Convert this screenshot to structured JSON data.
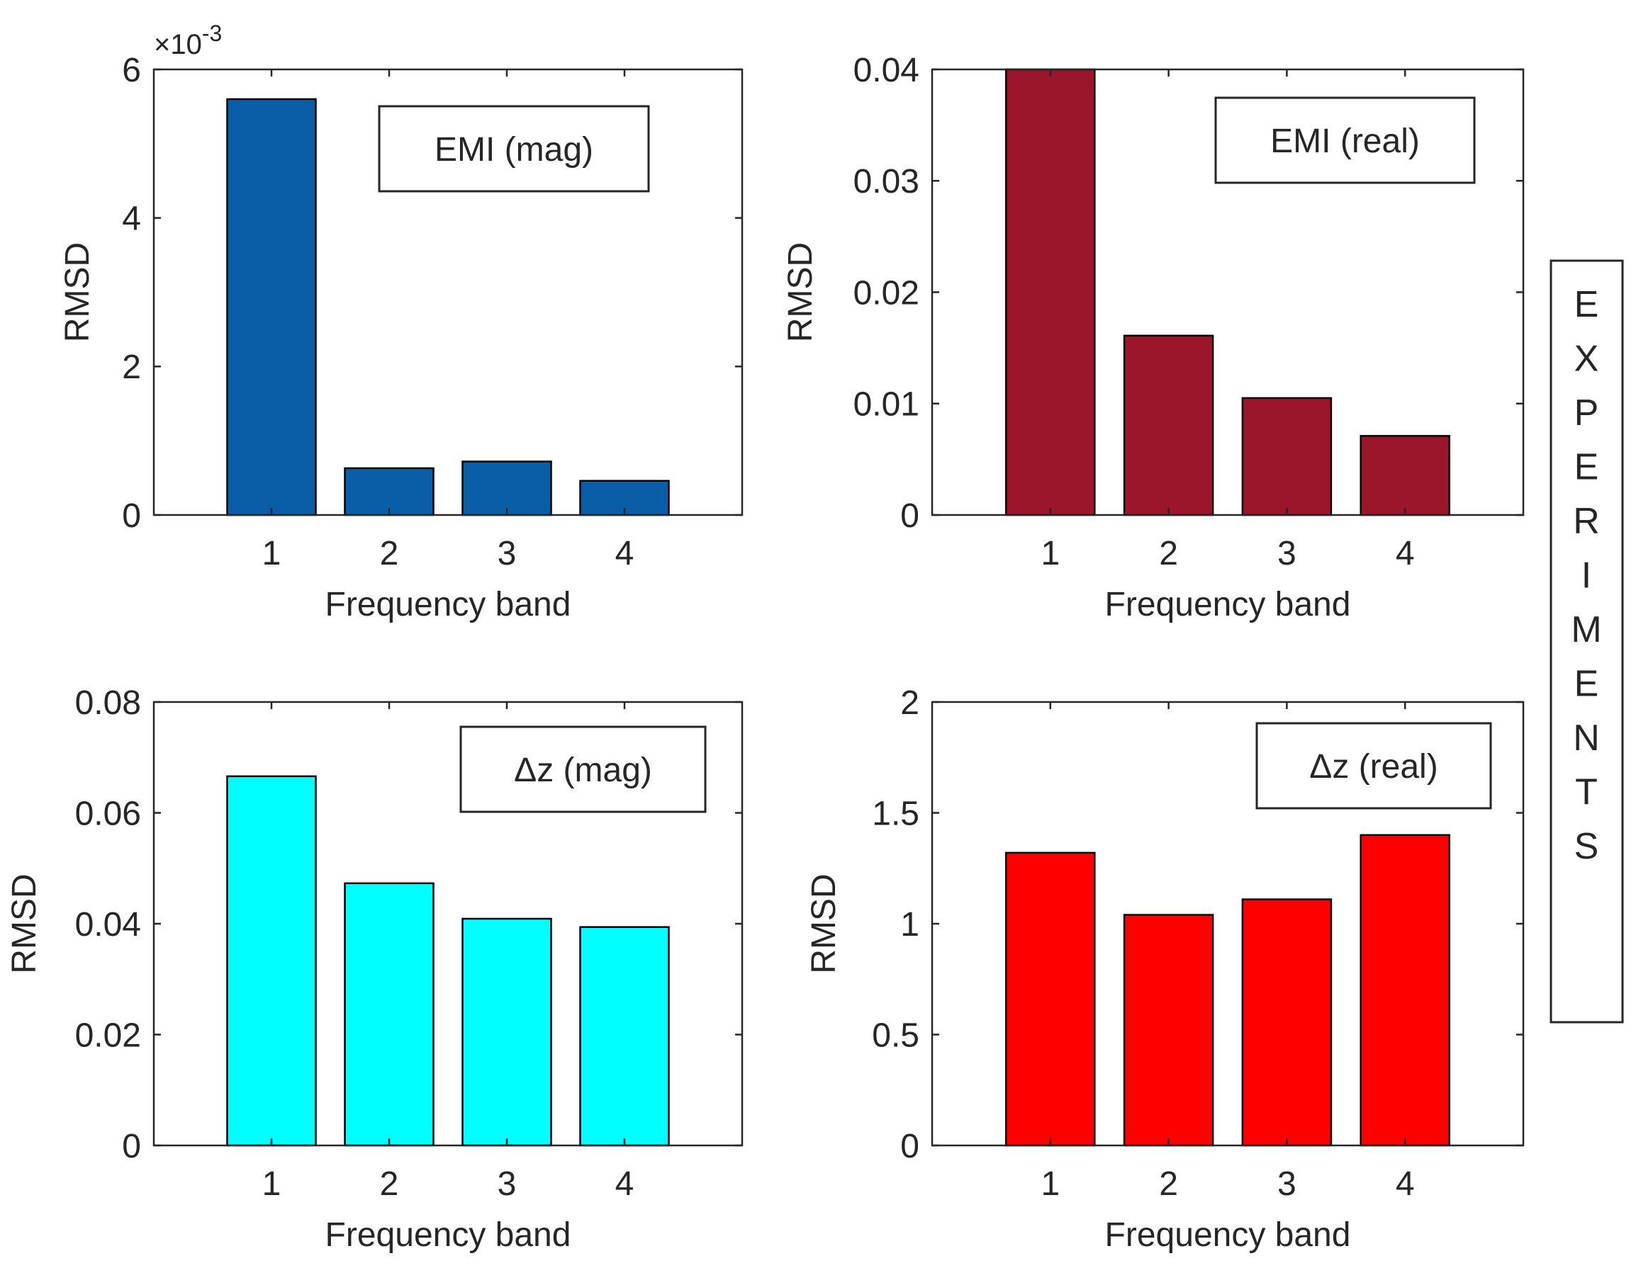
{
  "side_label": {
    "letters": [
      "E",
      "X",
      "P",
      "E",
      "R",
      "I",
      "M",
      "E",
      "N",
      "T",
      "S"
    ]
  },
  "chart_data": [
    {
      "type": "bar",
      "title": "",
      "legend": "EMI (mag)",
      "legend_position": "top-right",
      "xlabel": "Frequency band",
      "ylabel": "RMSD",
      "categories": [
        "1",
        "2",
        "3",
        "4"
      ],
      "values": [
        0.0056,
        0.00063,
        0.00072,
        0.00046
      ],
      "ylim": [
        0,
        0.006
      ],
      "yticks": [
        0,
        0.002,
        0.004,
        0.006
      ],
      "ytick_labels": [
        "0",
        "2",
        "4",
        "6"
      ],
      "exponent_label": {
        "base": "×10",
        "power": "-3"
      },
      "color": "#0a5ea8"
    },
    {
      "type": "bar",
      "title": "",
      "legend": "EMI (real)",
      "legend_position": "top-right",
      "xlabel": "Frequency band",
      "ylabel": "RMSD",
      "categories": [
        "1",
        "2",
        "3",
        "4"
      ],
      "values": [
        0.04,
        0.0161,
        0.0105,
        0.0071
      ],
      "ylim": [
        0,
        0.04
      ],
      "yticks": [
        0,
        0.01,
        0.02,
        0.03,
        0.04
      ],
      "ytick_labels": [
        "0",
        "0.01",
        "0.02",
        "0.03",
        "0.04"
      ],
      "color": "#9b152b"
    },
    {
      "type": "bar",
      "title": "",
      "legend": "Δz (mag)",
      "legend_position": "top-right",
      "xlabel": "Frequency band",
      "ylabel": "RMSD",
      "categories": [
        "1",
        "2",
        "3",
        "4"
      ],
      "values": [
        0.0666,
        0.0473,
        0.0409,
        0.0394
      ],
      "ylim": [
        0,
        0.08
      ],
      "yticks": [
        0,
        0.02,
        0.04,
        0.06,
        0.08
      ],
      "ytick_labels": [
        "0",
        "0.02",
        "0.04",
        "0.06",
        "0.08"
      ],
      "color": "#00ffff"
    },
    {
      "type": "bar",
      "title": "",
      "legend": "Δz (real)",
      "legend_position": "top-right",
      "xlabel": "Frequency band",
      "ylabel": "RMSD",
      "categories": [
        "1",
        "2",
        "3",
        "4"
      ],
      "values": [
        1.32,
        1.04,
        1.11,
        1.4
      ],
      "ylim": [
        0,
        2
      ],
      "yticks": [
        0,
        0.5,
        1,
        1.5,
        2
      ],
      "ytick_labels": [
        "0",
        "0.5",
        "1",
        "1.5",
        "2"
      ],
      "color": "#ff0000"
    }
  ]
}
